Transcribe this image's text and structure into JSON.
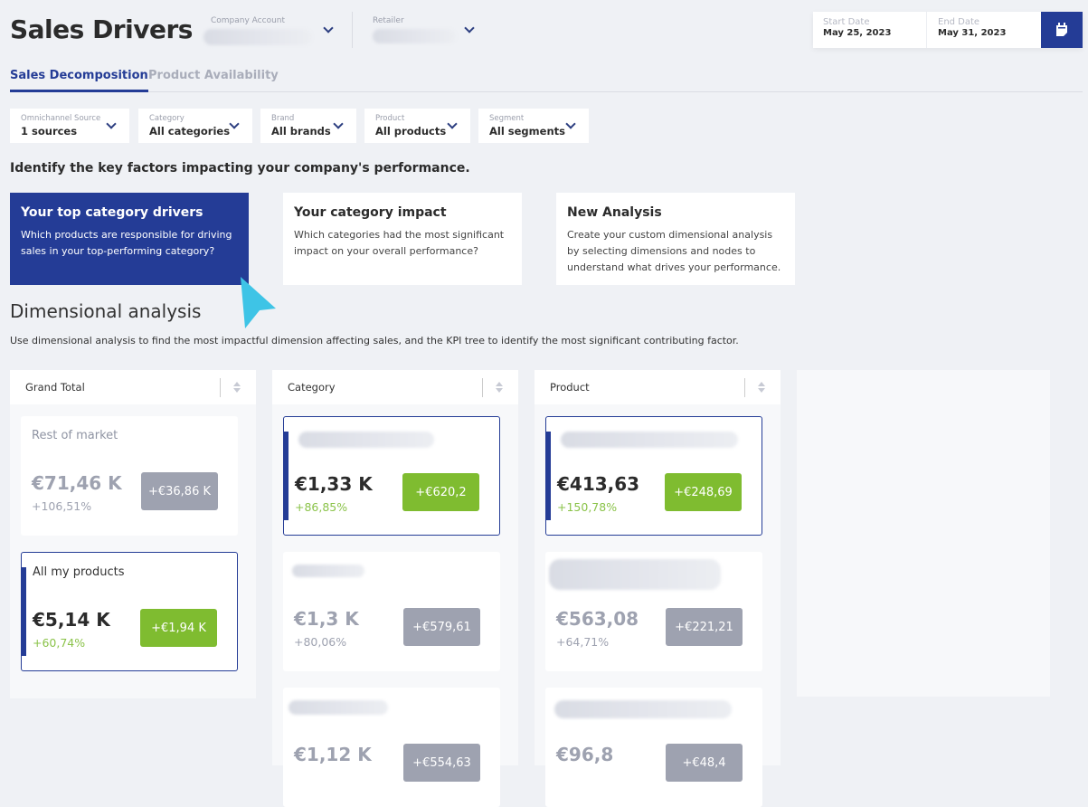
{
  "header": {
    "title": "Sales Drivers",
    "company_account_label": "Company Account",
    "retailer_label": "Retailer",
    "start_date_label": "Start Date",
    "start_date": "May 25, 2023",
    "end_date_label": "End Date",
    "end_date": "May 31, 2023"
  },
  "tabs": [
    {
      "label": "Sales Decomposition",
      "active": true
    },
    {
      "label": "Product Availability",
      "active": false
    }
  ],
  "filters": [
    {
      "label": "Omnichannel Source",
      "value": "1 sources"
    },
    {
      "label": "Category",
      "value": "All categories"
    },
    {
      "label": "Brand",
      "value": "All brands"
    },
    {
      "label": "Product",
      "value": "All products"
    },
    {
      "label": "Segment",
      "value": "All segments"
    }
  ],
  "headline": "Identify the key factors impacting your company's performance.",
  "tiles": [
    {
      "title": "Your top category drivers",
      "desc": "Which products are responsible for driving sales in your top-performing category?"
    },
    {
      "title": "Your category impact",
      "desc": "Which categories had the most significant impact on your overall performance?"
    },
    {
      "title": "New Analysis",
      "desc": "Create your custom dimensional analysis by selecting dimensions and nodes to understand what drives your performance."
    }
  ],
  "dimensional": {
    "title": "Dimensional analysis",
    "subtitle": "Use dimensional analysis to find the most impactful dimension affecting sales, and the KPI tree to identify the most significant contributing factor."
  },
  "columns": [
    {
      "header": "Grand Total",
      "cards": [
        {
          "name": "Rest of market",
          "value": "€71,46 K",
          "pct": "+106,51%",
          "delta": "+€36,86 K"
        },
        {
          "name": "All my products",
          "value": "€5,14 K",
          "pct": "+60,74%",
          "delta": "+€1,94 K"
        }
      ]
    },
    {
      "header": "Category",
      "cards": [
        {
          "value": "€1,33 K",
          "pct": "+86,85%",
          "delta": "+€620,2"
        },
        {
          "value": "€1,3 K",
          "pct": "+80,06%",
          "delta": "+€579,61"
        },
        {
          "value": "€1,12 K",
          "delta": "+€554,63"
        }
      ]
    },
    {
      "header": "Product",
      "cards": [
        {
          "value": "€413,63",
          "pct": "+150,78%",
          "delta": "+€248,69"
        },
        {
          "value": "€563,08",
          "pct": "+64,71%",
          "delta": "+€221,21"
        },
        {
          "value": "€96,8",
          "delta": "+€48,4"
        }
      ]
    }
  ],
  "colors": {
    "accent": "#243c96",
    "positive": "#7fbc30",
    "muted": "#9ea2b0"
  }
}
